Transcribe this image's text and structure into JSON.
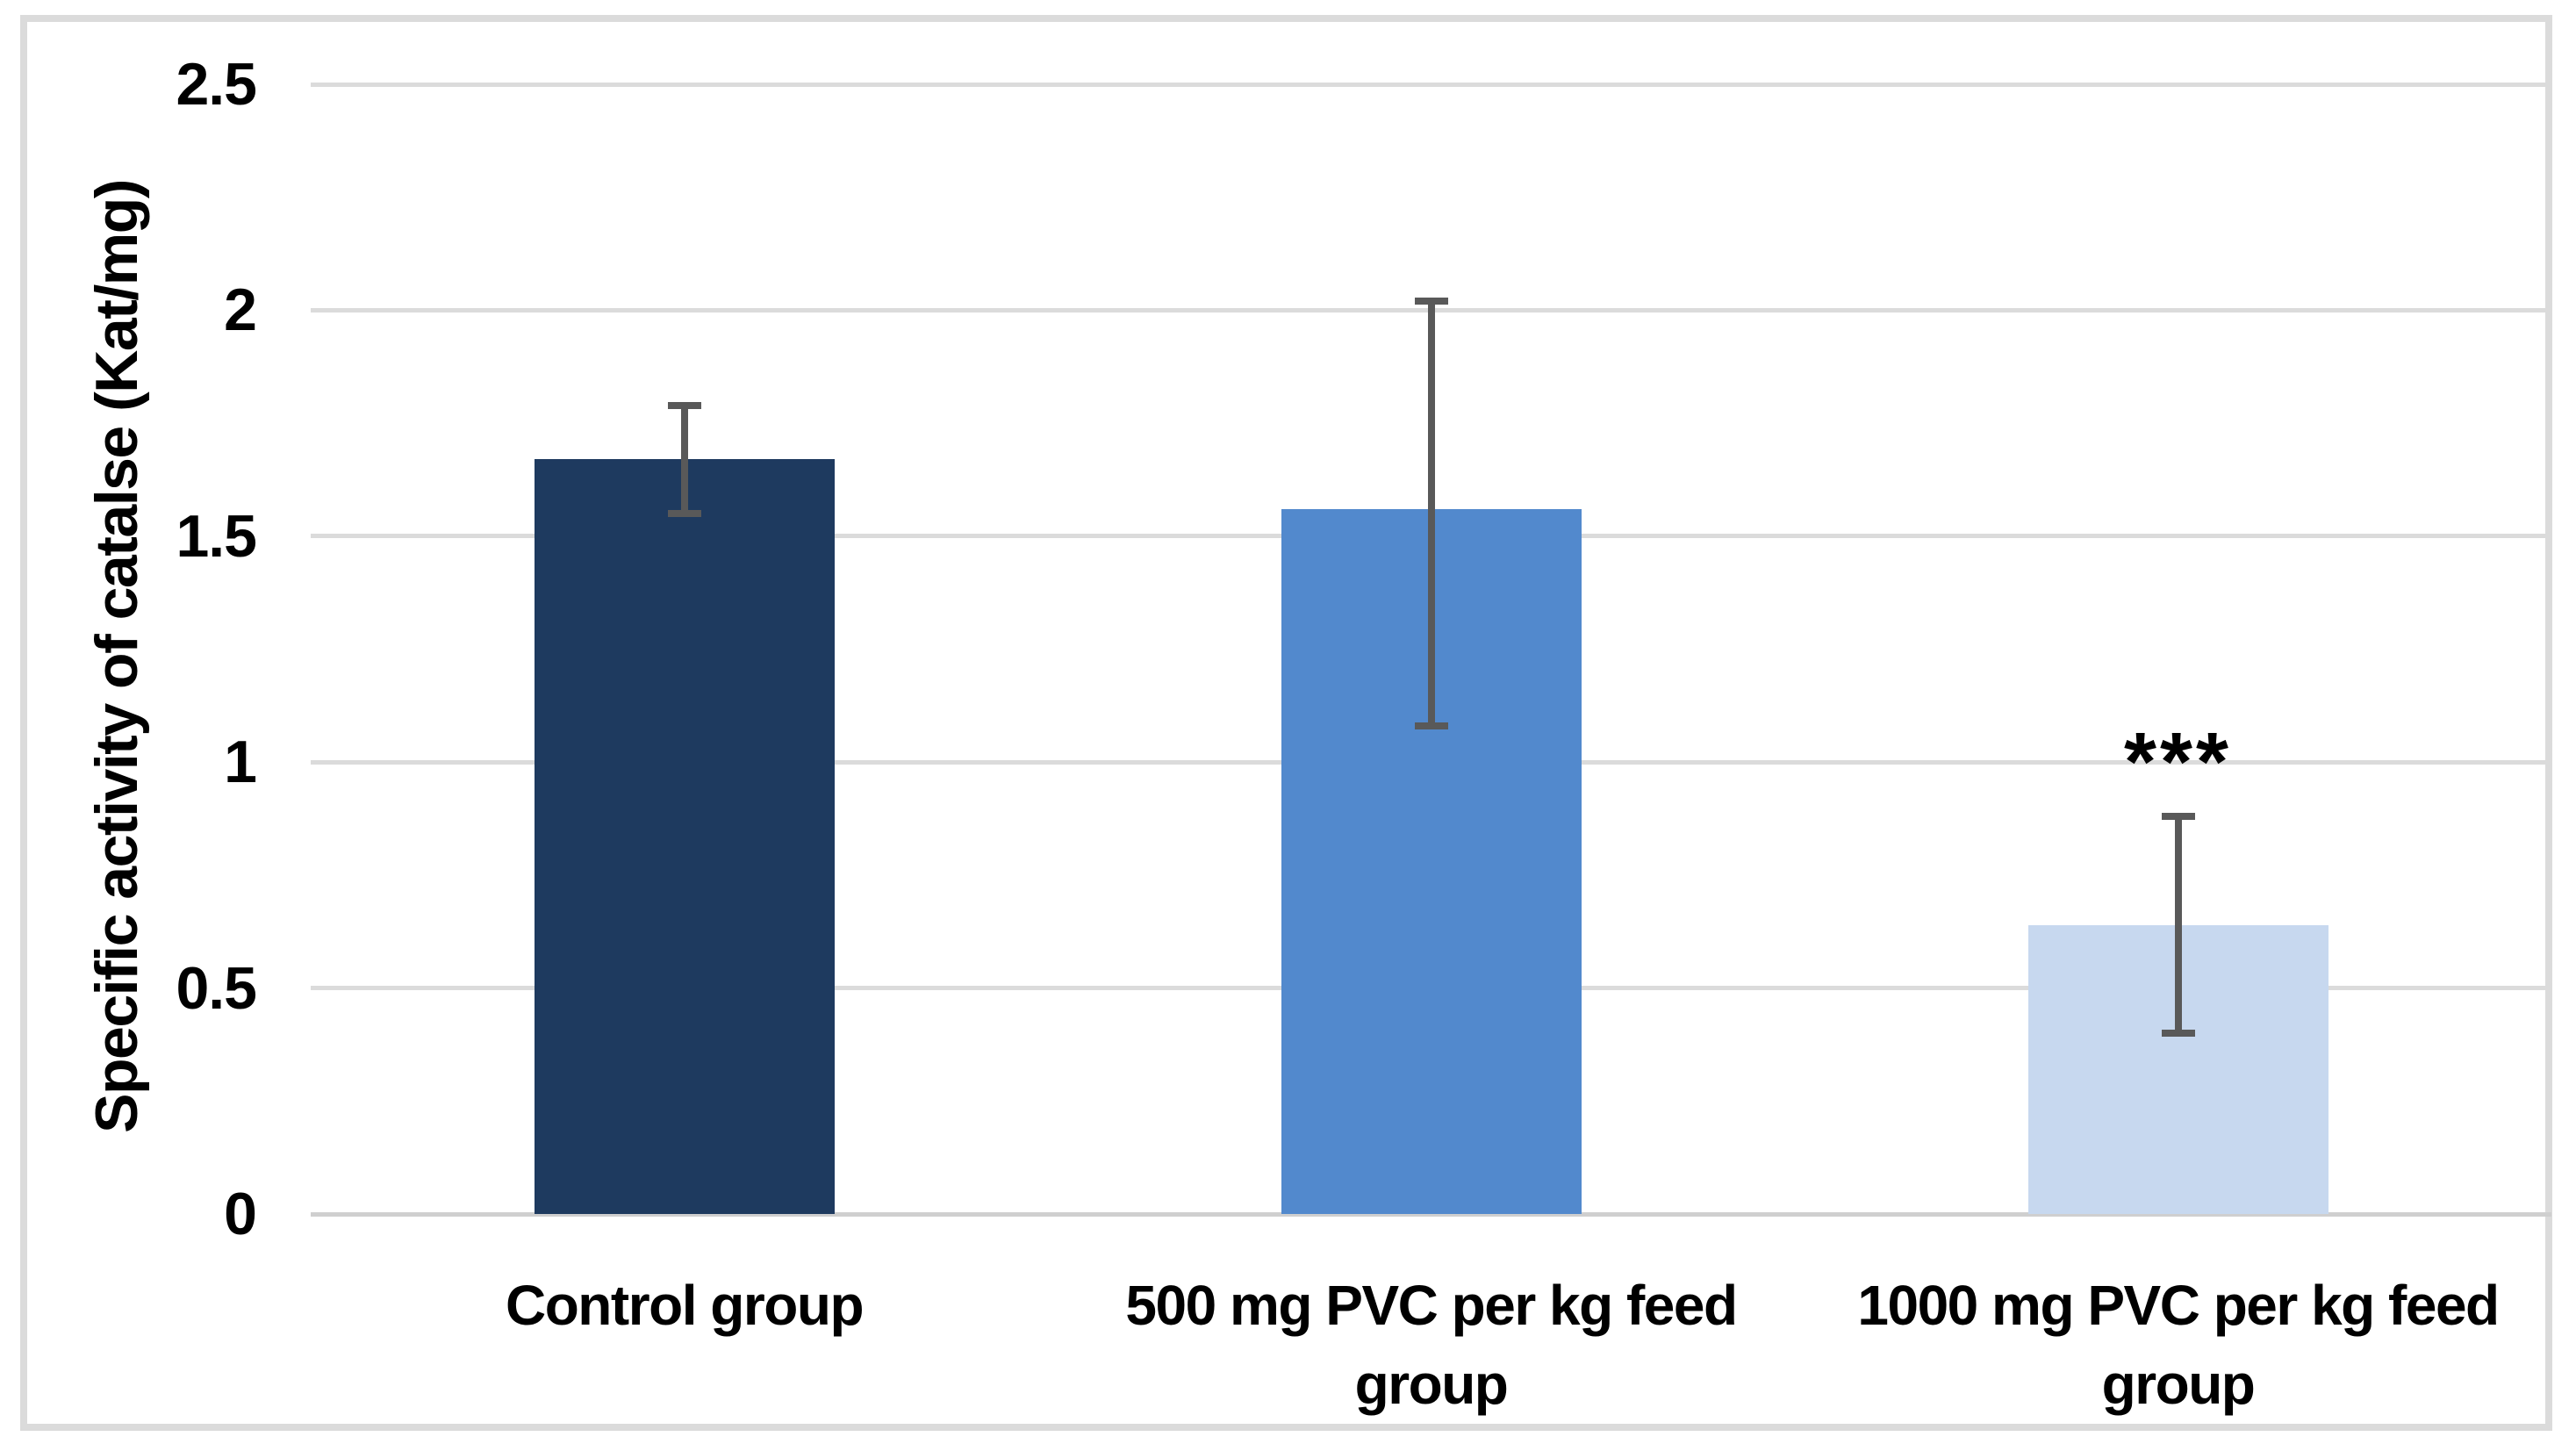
{
  "chart_data": {
    "type": "bar",
    "title": "",
    "xlabel": "",
    "ylabel": "Specific activity of catalse (Kat/mg)",
    "categories": [
      "Control group",
      "500 mg PVC per kg feed group",
      "1000 mg PVC per kg feed group"
    ],
    "categories_wrapped": [
      [
        "Control group"
      ],
      [
        "500 mg PVC per kg feed",
        "group"
      ],
      [
        "1000 mg PVC per kg feed",
        "group"
      ]
    ],
    "values": [
      1.67,
      1.56,
      0.64
    ],
    "error_upper": [
      1.79,
      2.02,
      0.88
    ],
    "error_lower": [
      1.55,
      1.08,
      0.4
    ],
    "annotations": [
      {
        "category_index": 2,
        "text": "***"
      }
    ],
    "ylim": [
      0,
      2.5
    ],
    "ytick_labels": [
      "0",
      "0.5",
      "1",
      "1.5",
      "2",
      "2.5"
    ],
    "grid": true,
    "legend": false,
    "bar_colors": [
      "#1E3A5F",
      "#5289CD",
      "#C7D8EF"
    ],
    "error_bar_color": "#595959",
    "gridline_color": "#DBDBDB",
    "axis_line_color": "#CFCFCF",
    "frame_border_color": "#DBDBDB",
    "background_color": "#FFFFFF",
    "text_color": "#000000"
  }
}
